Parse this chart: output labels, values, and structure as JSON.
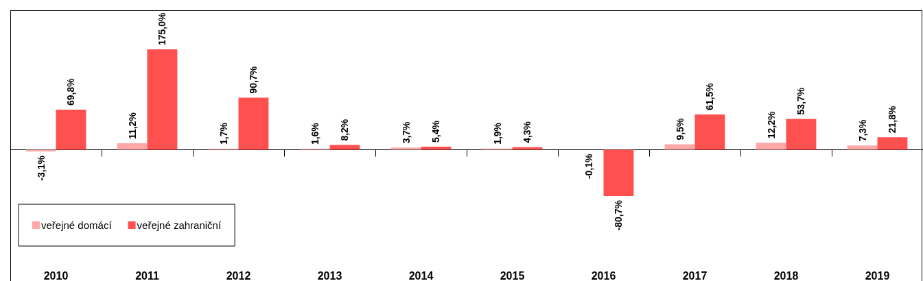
{
  "chart_data": {
    "type": "bar",
    "categories": [
      "2010",
      "2011",
      "2012",
      "2013",
      "2014",
      "2015",
      "2016",
      "2017",
      "2018",
      "2019"
    ],
    "series": [
      {
        "name": "veřejné domácí",
        "color": "#ffa8a8",
        "values": [
          -3.1,
          11.2,
          1.7,
          1.6,
          3.7,
          1.9,
          -0.1,
          9.5,
          12.2,
          7.3
        ],
        "value_labels": [
          "-3,1%",
          "11,2%",
          "1,7%",
          "1,6%",
          "3,7%",
          "1,9%",
          "-0,1%",
          "9,5%",
          "12,2%",
          "7,3%"
        ]
      },
      {
        "name": "veřejné zahraniční",
        "color": "#ff5050",
        "values": [
          69.8,
          175.0,
          90.7,
          8.2,
          5.4,
          4.3,
          -80.7,
          61.5,
          53.7,
          21.8
        ],
        "value_labels": [
          "69,8%",
          "175,0%",
          "90,7%",
          "8,2%",
          "5,4%",
          "4,3%",
          "-80,7%",
          "61,5%",
          "53,7%",
          "21,8%"
        ]
      }
    ],
    "legend": "bottom left"
  }
}
